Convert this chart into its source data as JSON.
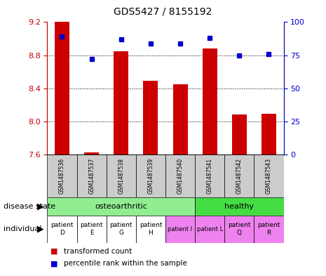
{
  "title": "GDS5427 / 8155192",
  "samples": [
    "GSM1487536",
    "GSM1487537",
    "GSM1487538",
    "GSM1487539",
    "GSM1487540",
    "GSM1487541",
    "GSM1487542",
    "GSM1487543"
  ],
  "red_values": [
    9.2,
    7.63,
    8.85,
    8.49,
    8.45,
    8.88,
    8.08,
    8.09
  ],
  "blue_values": [
    89,
    72,
    87,
    84,
    84,
    88,
    75,
    76
  ],
  "ylim_left": [
    7.6,
    9.2
  ],
  "ylim_right": [
    0,
    100
  ],
  "yticks_left": [
    7.6,
    8.0,
    8.4,
    8.8,
    9.2
  ],
  "yticks_right": [
    0,
    25,
    50,
    75,
    100
  ],
  "disease_osteo_color": "#90EE90",
  "disease_healthy_color": "#44DD44",
  "individual_white_color": "#FFFFFF",
  "individual_pink_color": "#EE82EE",
  "bar_color": "#CC0000",
  "dot_color": "#0000CC",
  "bar_bottom": 7.6,
  "bar_width": 0.5,
  "sample_box_color": "#CCCCCC",
  "left_axis_color": "#CC0000",
  "right_axis_color": "#0000CC",
  "grid_ticks": [
    8.0,
    8.4,
    8.8
  ]
}
